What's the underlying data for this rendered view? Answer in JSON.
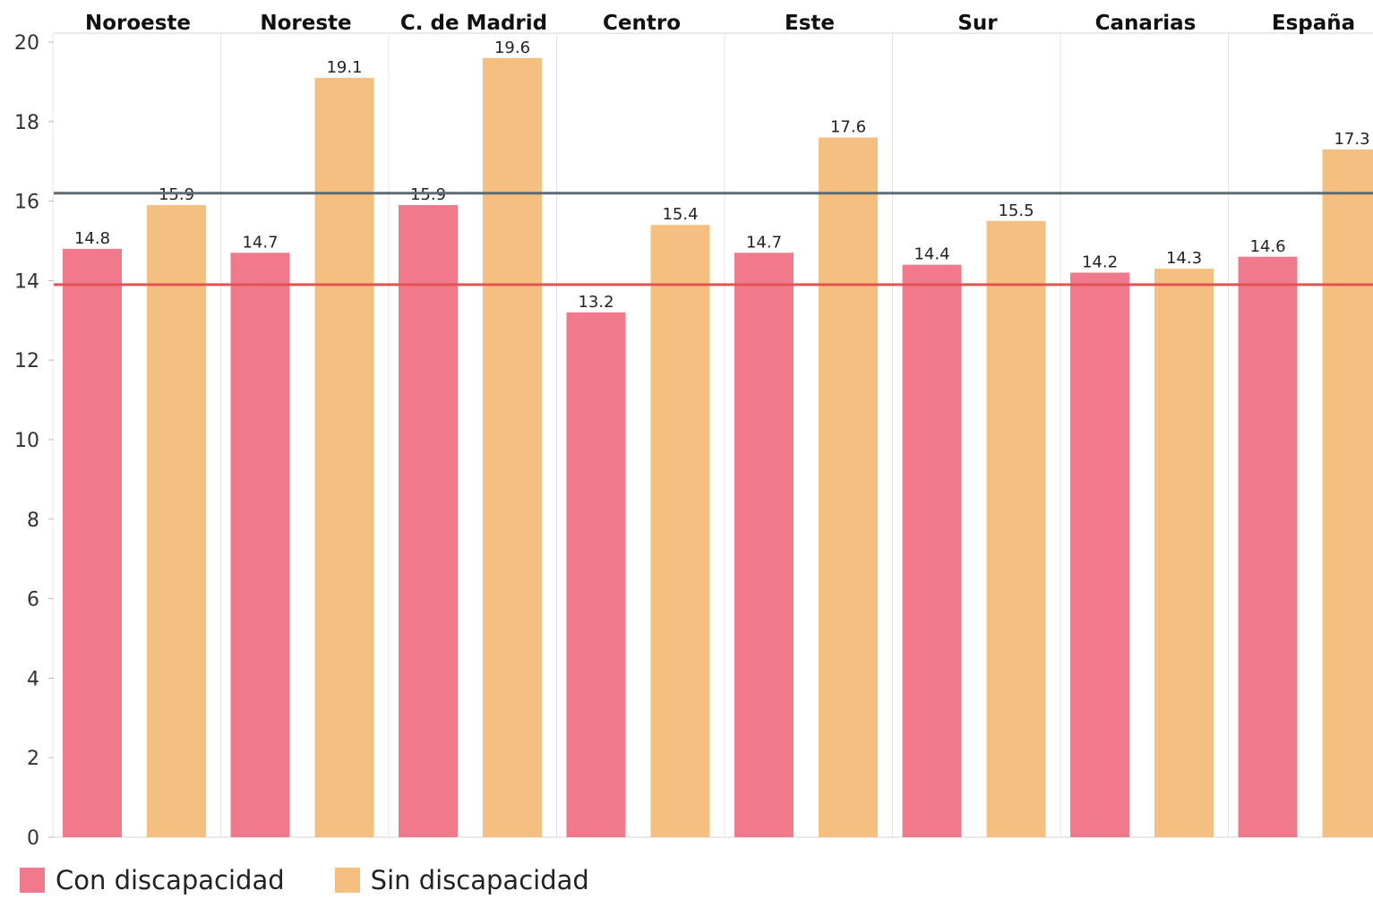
{
  "chart_data": {
    "type": "bar",
    "categories": [
      "Noroeste",
      "Noreste",
      "C. de Madrid",
      "Centro",
      "Este",
      "Sur",
      "Canarias",
      "España"
    ],
    "series": [
      {
        "name": "Con discapacidad",
        "color": "#f0798c",
        "values": [
          14.8,
          14.7,
          15.9,
          13.2,
          14.7,
          14.4,
          14.2,
          14.6
        ]
      },
      {
        "name": "Sin discapacidad",
        "color": "#f5c07f",
        "values": [
          15.9,
          19.1,
          19.6,
          15.4,
          17.6,
          15.5,
          14.3,
          17.3
        ]
      }
    ],
    "value_labels": [
      [
        "14.8",
        "14.7",
        "15.9",
        "13.2",
        "14.7",
        "14.4",
        "14.2",
        "14.6"
      ],
      [
        "15.9",
        "19.1",
        "19.6",
        "15.4",
        "17.6",
        "15.5",
        "14.3",
        "17.3"
      ]
    ],
    "reference_lines": [
      {
        "value": 16.2,
        "color": "#5f6b74"
      },
      {
        "value": 13.9,
        "color": "#e05454"
      }
    ],
    "yticks": [
      "0",
      "2",
      "4",
      "6",
      "8",
      "10",
      "12",
      "14",
      "16",
      "18",
      "20"
    ],
    "ylim": [
      0,
      20
    ],
    "category_labels_position": "top",
    "grid": "vertical separators",
    "legend_position": "bottom-left"
  },
  "legend": {
    "items": [
      {
        "label": "Con discapacidad",
        "color": "#f0798c"
      },
      {
        "label": "Sin discapacidad",
        "color": "#f5c07f"
      }
    ]
  }
}
